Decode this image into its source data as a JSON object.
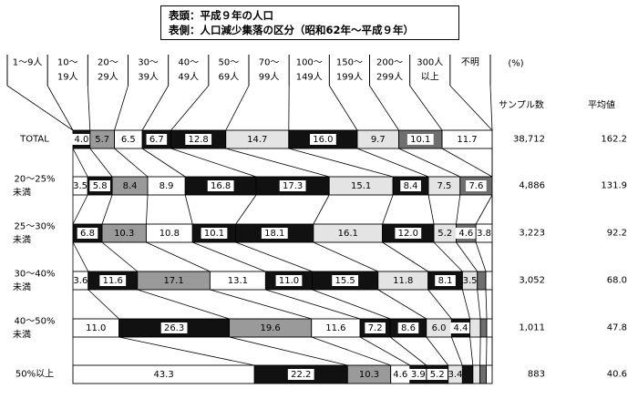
{
  "chart_data": {
    "type": "bar",
    "orientation": "horizontal-stacked-100",
    "title_lines": [
      "表頭：平成９年の人口",
      "表側：人口減少集落の区分（昭和62年～平成９年）"
    ],
    "unit_label": "(%)",
    "column_headers": {
      "sample": "サンプル数",
      "mean": "平均値"
    },
    "legend_categories": [
      {
        "line1": "1～9人",
        "line2": ""
      },
      {
        "line1": "10～",
        "line2": "19人"
      },
      {
        "line1": "20～",
        "line2": "29人"
      },
      {
        "line1": "30～",
        "line2": "39人"
      },
      {
        "line1": "40～",
        "line2": "49人"
      },
      {
        "line1": "50～",
        "line2": "69人"
      },
      {
        "line1": "70～",
        "line2": "99人"
      },
      {
        "line1": "100～",
        "line2": "149人"
      },
      {
        "line1": "150～",
        "line2": "199人"
      },
      {
        "line1": "200～",
        "line2": "299人"
      },
      {
        "line1": "300人",
        "line2": "以上"
      },
      {
        "line1": "不明",
        "line2": ""
      }
    ],
    "segment_colors": [
      "#ffffff",
      "#111111",
      "#9a9a9a",
      "#ffffff",
      "#111111",
      "#111111",
      "#e4e4e4",
      "#111111",
      "#e4e4e4",
      "#6f6f6f",
      "#ffffff",
      "#ffffff"
    ],
    "rows": [
      {
        "label_line1": "TOTAL",
        "label_line2": "",
        "sample": "38,712",
        "mean": "162.2",
        "values": [
          0,
          4.0,
          5.7,
          6.5,
          6.7,
          12.8,
          14.7,
          16.0,
          9.7,
          10.1,
          11.7,
          0
        ],
        "labels": [
          "",
          "4.0",
          "5.7",
          "6.5",
          "6.7",
          "12.8",
          "14.7",
          "16.0",
          "9.7",
          "10.1",
          "11.7",
          ""
        ]
      },
      {
        "label_line1": "20～25%",
        "label_line2": "未満",
        "sample": "4,886",
        "mean": "131.9",
        "values": [
          3.5,
          5.8,
          8.4,
          8.9,
          16.8,
          17.3,
          15.1,
          8.4,
          7.5,
          7.6,
          0,
          0
        ],
        "labels": [
          "3.5",
          "5.8",
          "8.4",
          "8.9",
          "16.8",
          "17.3",
          "15.1",
          "8.4",
          "7.5",
          "7.6",
          "",
          ""
        ]
      },
      {
        "label_line1": "25～30%",
        "label_line2": "未満",
        "sample": "3,223",
        "mean": "92.2",
        "values": [
          0,
          6.8,
          10.3,
          10.8,
          10.1,
          18.1,
          16.1,
          12.0,
          5.2,
          4.6,
          3.8,
          0
        ],
        "labels": [
          "",
          "6.8",
          "10.3",
          "10.8",
          "10.1",
          "18.1",
          "16.1",
          "12.0",
          "5.2",
          "4.6",
          "3.8",
          ""
        ]
      },
      {
        "label_line1": "30～40%",
        "label_line2": "未満",
        "sample": "3,052",
        "mean": "68.0",
        "values": [
          3.6,
          11.6,
          17.1,
          13.1,
          11.0,
          15.5,
          11.8,
          8.1,
          3.5,
          2.0,
          1.5,
          0
        ],
        "labels": [
          "3.6",
          "11.6",
          "17.1",
          "13.1",
          "11.0",
          "15.5",
          "11.8",
          "8.1",
          "3.5",
          "",
          "",
          ""
        ]
      },
      {
        "label_line1": "40～50%",
        "label_line2": "未満",
        "sample": "1,011",
        "mean": "47.8",
        "values": [
          11.0,
          26.3,
          19.6,
          11.6,
          7.2,
          8.6,
          6.0,
          4.4,
          2.5,
          1.5,
          1.3,
          0
        ],
        "labels": [
          "11.0",
          "26.3",
          "19.6",
          "11.6",
          "7.2",
          "8.6",
          "6.0",
          "4.4",
          "",
          "",
          "",
          ""
        ]
      },
      {
        "label_line1": "50%以上",
        "label_line2": "",
        "sample": "883",
        "mean": "40.6",
        "values": [
          43.3,
          22.2,
          10.3,
          4.6,
          3.9,
          5.2,
          3.4,
          2.5,
          1.7,
          1.5,
          1.4,
          0
        ],
        "labels": [
          "43.3",
          "22.2",
          "10.3",
          "4.6",
          "3.9",
          "5.2",
          "3.4",
          "",
          "",
          "",
          "",
          ""
        ]
      }
    ]
  }
}
